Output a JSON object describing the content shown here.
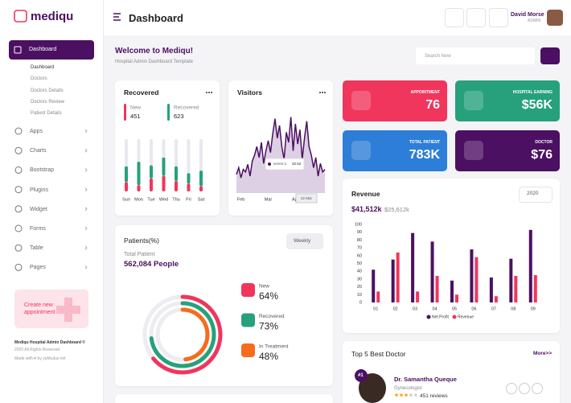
{
  "sidebar": {
    "logo": "mediqu",
    "active": {
      "label": "Dashboard",
      "children": [
        "Dashboard",
        "Doctors",
        "Doctors Details",
        "Doctors Review",
        "Patient Details"
      ]
    },
    "menu": [
      "Apps",
      "Charts",
      "Bootstrap",
      "Plugins",
      "Widget",
      "Forms",
      "Table",
      "Pages"
    ],
    "promo": "Create new appointment",
    "footer": [
      "Mediqu Hospital Admin Dashboard ©",
      "2020 All Rights Reserved",
      "Made with ♥ by yuhbulus.net"
    ]
  },
  "header": {
    "title": "Dashboard",
    "user": {
      "name": "David Morse",
      "role": "ADMIN"
    }
  },
  "welcome": {
    "title": "Welcome to Mediqu!",
    "subtitle": "Hospital Admin Dashboard Template",
    "search_placeholder": "Search here"
  },
  "stats": [
    {
      "label": "APPOINTMENT",
      "value": "76",
      "color": "#f0365c"
    },
    {
      "label": "HOSPITAL EARNING",
      "value": "$56K",
      "color": "#26a17c"
    },
    {
      "label": "TOTAL PATIENT",
      "value": "783K",
      "color": "#2d7ed8"
    },
    {
      "label": "DOCTOR",
      "value": "$76",
      "color": "#4b1062"
    }
  ],
  "chart_data": [
    {
      "type": "bar",
      "stacked": true,
      "title": "Recovered",
      "categories": [
        "Sun",
        "Mon",
        "Tue",
        "Wed",
        "Thu",
        "Fri",
        "Sat"
      ],
      "series": [
        {
          "name": "New",
          "total": 451,
          "color": "#f0365c",
          "values": [
            18,
            12,
            25,
            30,
            20,
            15,
            10
          ]
        },
        {
          "name": "Recovered",
          "total": 623,
          "color": "#26a17c",
          "values": [
            30,
            45,
            25,
            35,
            28,
            20,
            30
          ]
        }
      ],
      "ylim": [
        0,
        100
      ]
    },
    {
      "type": "area",
      "title": "Visitors",
      "color": "#4b1062",
      "categories": [
        null,
        null,
        "Feb",
        null,
        null,
        null,
        null,
        null,
        null,
        null,
        null,
        null,
        null,
        null,
        "Mar",
        null,
        null,
        null,
        null,
        null,
        null,
        null,
        null,
        null,
        null,
        null,
        "Apr",
        null,
        null,
        null,
        null,
        null,
        null,
        null,
        null,
        null,
        null,
        null,
        null,
        null
      ],
      "values": [
        22,
        30,
        18,
        28,
        25,
        34,
        20,
        38,
        45,
        55,
        42,
        60,
        35,
        50,
        62,
        48,
        70,
        88,
        65,
        80,
        55,
        40,
        72,
        60,
        90,
        50,
        82,
        58,
        75,
        40,
        65,
        85,
        55,
        45,
        30,
        42,
        20,
        35,
        25,
        28
      ],
      "ylim": [
        0,
        100
      ],
      "tooltip": {
        "x": "22 Mar",
        "label": "series-1:",
        "value": 32.52
      }
    },
    {
      "type": "bar",
      "title": "Revenue",
      "period": "2020",
      "totals": [
        "$41,512k",
        "$25,612k"
      ],
      "categories": [
        "01",
        "02",
        "03",
        "04",
        "05",
        "06",
        "07",
        "08",
        "09"
      ],
      "series": [
        {
          "name": "Net Profit",
          "color": "#4b1062",
          "values": [
            42,
            55,
            89,
            78,
            28,
            68,
            32,
            56,
            93
          ]
        },
        {
          "name": "Revenue",
          "color": "#f0365c",
          "values": [
            14,
            64,
            14,
            34,
            10,
            58,
            8,
            34,
            35
          ]
        }
      ],
      "ylim": [
        0,
        100
      ],
      "yticks": [
        0,
        10,
        20,
        30,
        40,
        50,
        60,
        70,
        80,
        90,
        100
      ]
    },
    {
      "type": "donut",
      "title": "Patients(%)",
      "period": "Weekly",
      "subtitle": "Total Patient",
      "total": "562,084 People",
      "categories": [
        "New",
        "Recovered",
        "In Treatment"
      ],
      "values": [
        64,
        73,
        48
      ],
      "value_labels": [
        "64%",
        "73%",
        "48%"
      ],
      "colors": [
        "#f0365c",
        "#26a17c",
        "#f76b1c"
      ]
    }
  ],
  "top_doctors": {
    "title": "Top 5 Best Doctor",
    "more": "More>>",
    "doctors": [
      {
        "rank": "#1",
        "name": "Dr. Samantha Queque",
        "specialty": "Gynecologist",
        "reviews": "451 reviews"
      }
    ]
  }
}
